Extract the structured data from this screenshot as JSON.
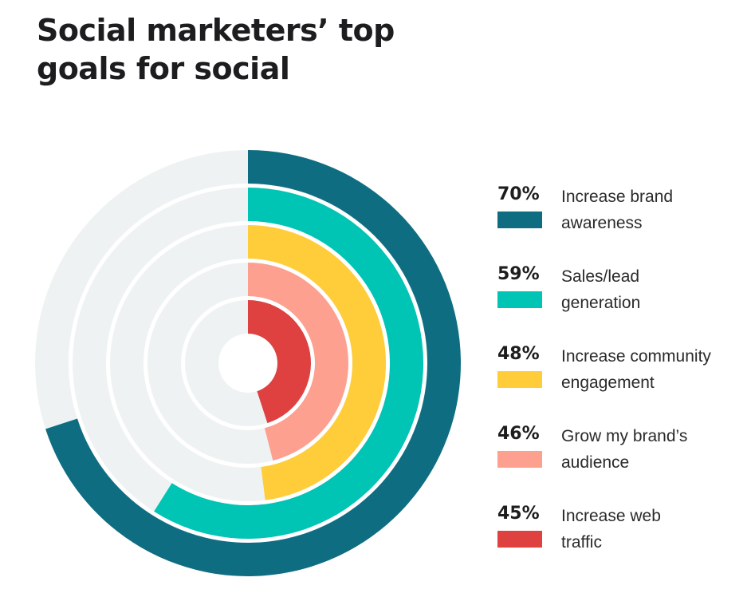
{
  "title": "Social marketers’ top goals for social",
  "colors": {
    "track": "#eff2f3",
    "background": "#ffffff"
  },
  "chart_data": {
    "type": "radial-bar",
    "title": "Social marketers’ top goals for social",
    "unit": "%",
    "max": 100,
    "series": [
      {
        "label": "Increase brand\nawareness",
        "value_label": "70%",
        "value": 70,
        "color": "#0f6d82"
      },
      {
        "label": "Sales/lead\ngeneration",
        "value_label": "59%",
        "value": 59,
        "color": "#00c4b4"
      },
      {
        "label": "Increase community\nengagement",
        "value_label": "48%",
        "value": 48,
        "color": "#ffcd3a"
      },
      {
        "label": "Grow my brand’s\naudience",
        "value_label": "46%",
        "value": 46,
        "color": "#fea090"
      },
      {
        "label": "Increase web\ntraffic",
        "value_label": "45%",
        "value": 45,
        "color": "#de4140"
      }
    ]
  }
}
